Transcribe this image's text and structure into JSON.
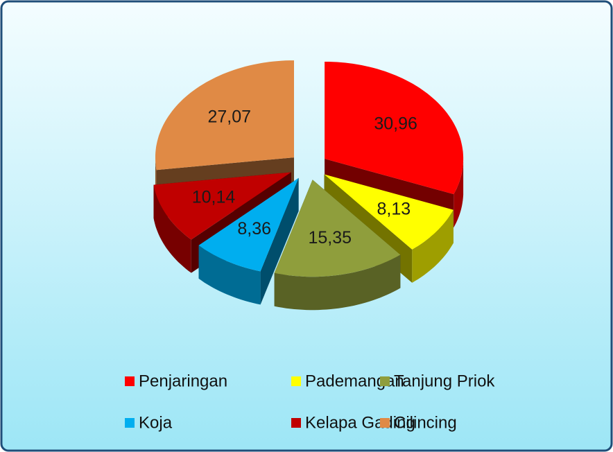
{
  "chart_data": {
    "type": "pie",
    "categories": [
      "Penjaringan",
      "Pademangan",
      "Tanjung Priok",
      "Koja",
      "Kelapa Gading",
      "Cilincing"
    ],
    "values": [
      30.96,
      8.13,
      15.35,
      8.36,
      10.14,
      27.07
    ],
    "value_labels": [
      "30,96",
      "8,13",
      "15,35",
      "8,36",
      "10,14",
      "27,07"
    ],
    "colors": [
      "#ff0000",
      "#ffff00",
      "#8f9e3c",
      "#00aeef",
      "#c00000",
      "#e08a45"
    ]
  }
}
